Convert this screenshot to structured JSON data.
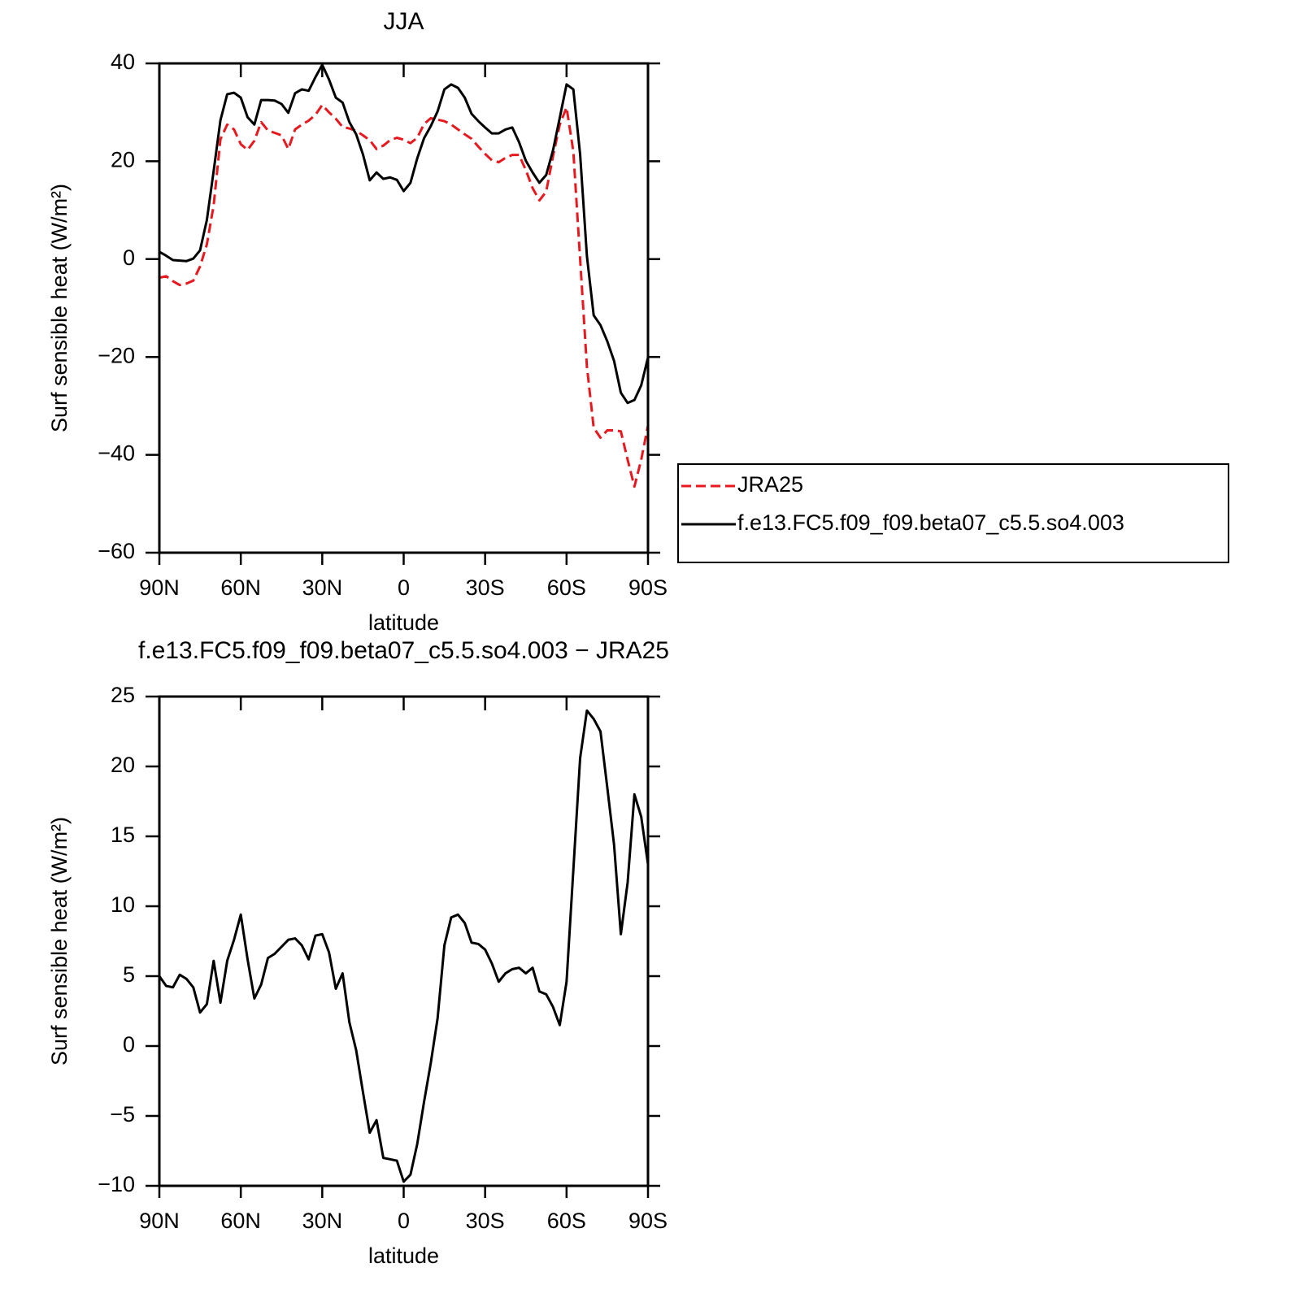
{
  "chart_data": [
    {
      "type": "line",
      "title": "JJA",
      "xlabel": "latitude",
      "ylabel": "Surf sensible heat (W/m²)",
      "x": [
        90,
        87.5,
        85,
        82.5,
        80,
        77.5,
        75,
        72.5,
        70,
        67.5,
        65,
        62.5,
        60,
        57.5,
        55,
        52.5,
        50,
        47.5,
        45,
        42.5,
        40,
        37.5,
        35,
        32.5,
        30,
        27.5,
        25,
        22.5,
        20,
        17.5,
        15,
        12.5,
        10,
        7.5,
        5,
        2.5,
        0,
        -2.5,
        -5,
        -7.5,
        -10,
        -12.5,
        -15,
        -17.5,
        -20,
        -22.5,
        -25,
        -27.5,
        -30,
        -32.5,
        -35,
        -37.5,
        -40,
        -42.5,
        -45,
        -47.5,
        -50,
        -52.5,
        -55,
        -57.5,
        -60,
        -62.5,
        -65,
        -67.5,
        -70,
        -72.5,
        -75,
        -77.5,
        -80,
        -82.5,
        -85,
        -87.5,
        -90
      ],
      "xlim": [
        90,
        -90
      ],
      "xticks": [
        {
          "value": 90,
          "label": "90N"
        },
        {
          "value": 60,
          "label": "60N"
        },
        {
          "value": 30,
          "label": "30N"
        },
        0,
        {
          "value": -30,
          "label": "30S"
        },
        {
          "value": -60,
          "label": "60S"
        },
        {
          "value": -90,
          "label": "90S"
        }
      ],
      "ylim": [
        -60,
        40
      ],
      "yticks": [
        -60,
        -40,
        -20,
        0,
        20,
        40
      ],
      "legend": "right",
      "series": [
        {
          "name": "JRA25",
          "color": "#e8191e",
          "style": "dashed",
          "values": [
            -3.8,
            -3.5,
            -4.5,
            -5.3,
            -5,
            -4.4,
            -1.5,
            3,
            11,
            24.5,
            27.5,
            26.5,
            23.5,
            22.3,
            24.2,
            28,
            26.3,
            25.8,
            25.3,
            22.5,
            26.5,
            27.5,
            28.3,
            29.5,
            31.5,
            30,
            28.7,
            27,
            26.7,
            26.2,
            25.3,
            24.3,
            22.5,
            23.2,
            24.3,
            24.8,
            24.4,
            23.7,
            24.8,
            27.6,
            28.8,
            28.5,
            28.2,
            27.5,
            26.5,
            25.5,
            24.6,
            23,
            21.5,
            20.2,
            19.8,
            20.7,
            21.3,
            21.3,
            18.2,
            14.5,
            12,
            13.8,
            21,
            27.5,
            31,
            22,
            0,
            -22,
            -34.5,
            -36.5,
            -35,
            -35,
            -35.2,
            -41,
            -46.5,
            -41,
            -34
          ]
        },
        {
          "name": "f.e13.FC5.f09_f09.beta07_c5.5.so4.003",
          "color": "#000000",
          "style": "solid",
          "values": [
            1.5,
            0.7,
            -0.2,
            -0.3,
            -0.4,
            0.1,
            1.8,
            8,
            18,
            28.4,
            33.7,
            34,
            33,
            29,
            27.5,
            32.5,
            32.5,
            32.4,
            31.7,
            29.9,
            33.9,
            34.7,
            34.4,
            37.2,
            39.7,
            36.7,
            33,
            32,
            28,
            25.5,
            21.4,
            16.1,
            17.7,
            16.4,
            16.7,
            16.2,
            13.9,
            15.6,
            20.6,
            24.7,
            27.2,
            30.2,
            34.7,
            35.7,
            35,
            33,
            29.7,
            28.2,
            26.9,
            25.7,
            25.7,
            26.5,
            26.9,
            23.9,
            20.1,
            17.7,
            15.6,
            17.2,
            22.2,
            28.9,
            35.7,
            34.7,
            21.4,
            0.6,
            -11.5,
            -13.5,
            -16.8,
            -20.8,
            -27.3,
            -29.4,
            -28.8,
            -25.8,
            -20.1
          ]
        }
      ]
    },
    {
      "type": "line",
      "title": "f.e13.FC5.f09_f09.beta07_c5.5.so4.003 − JRA25",
      "xlabel": "latitude",
      "ylabel": "Surf sensible heat (W/m²)",
      "x": [
        90,
        87.5,
        85,
        82.5,
        80,
        77.5,
        75,
        72.5,
        70,
        67.5,
        65,
        62.5,
        60,
        57.5,
        55,
        52.5,
        50,
        47.5,
        45,
        42.5,
        40,
        37.5,
        35,
        32.5,
        30,
        27.5,
        25,
        22.5,
        20,
        17.5,
        15,
        12.5,
        10,
        7.5,
        5,
        2.5,
        0,
        -2.5,
        -5,
        -7.5,
        -10,
        -12.5,
        -15,
        -17.5,
        -20,
        -22.5,
        -25,
        -27.5,
        -30,
        -32.5,
        -35,
        -37.5,
        -40,
        -42.5,
        -45,
        -47.5,
        -50,
        -52.5,
        -55,
        -57.5,
        -60,
        -62.5,
        -65,
        -67.5,
        -70,
        -72.5,
        -75,
        -77.5,
        -80,
        -82.5,
        -85,
        -87.5,
        -90
      ],
      "xlim": [
        90,
        -90
      ],
      "xticks": [
        {
          "value": 90,
          "label": "90N"
        },
        {
          "value": 60,
          "label": "60N"
        },
        {
          "value": 30,
          "label": "30N"
        },
        0,
        {
          "value": -30,
          "label": "30S"
        },
        {
          "value": -60,
          "label": "60S"
        },
        {
          "value": -90,
          "label": "90S"
        }
      ],
      "ylim": [
        -10,
        25
      ],
      "yticks": [
        -10,
        -5,
        0,
        5,
        10,
        15,
        20,
        25
      ],
      "series": [
        {
          "color": "#000000",
          "style": "solid",
          "values": [
            5.0,
            4.3,
            4.2,
            5.1,
            4.8,
            4.2,
            2.4,
            3.0,
            6.1,
            3.1,
            6.1,
            7.6,
            9.4,
            6.2,
            3.4,
            4.4,
            6.3,
            6.6,
            7.1,
            7.6,
            7.7,
            7.2,
            6.2,
            7.9,
            8.0,
            6.7,
            4.1,
            5.2,
            1.7,
            -0.3,
            -3.3,
            -6.2,
            -5.3,
            -8.0,
            -8.1,
            -8.2,
            -9.7,
            -9.2,
            -7.0,
            -4.0,
            -1.2,
            2.0,
            7.2,
            9.2,
            9.4,
            8.8,
            7.4,
            7.3,
            6.9,
            5.9,
            4.6,
            5.2,
            5.5,
            5.6,
            5.2,
            5.6,
            3.9,
            3.7,
            2.8,
            1.5,
            4.6,
            12.6,
            20.6,
            24.0,
            23.4,
            22.5,
            18.5,
            14.4,
            8.0,
            11.7,
            18.0,
            16.4,
            13.0
          ]
        }
      ]
    }
  ]
}
